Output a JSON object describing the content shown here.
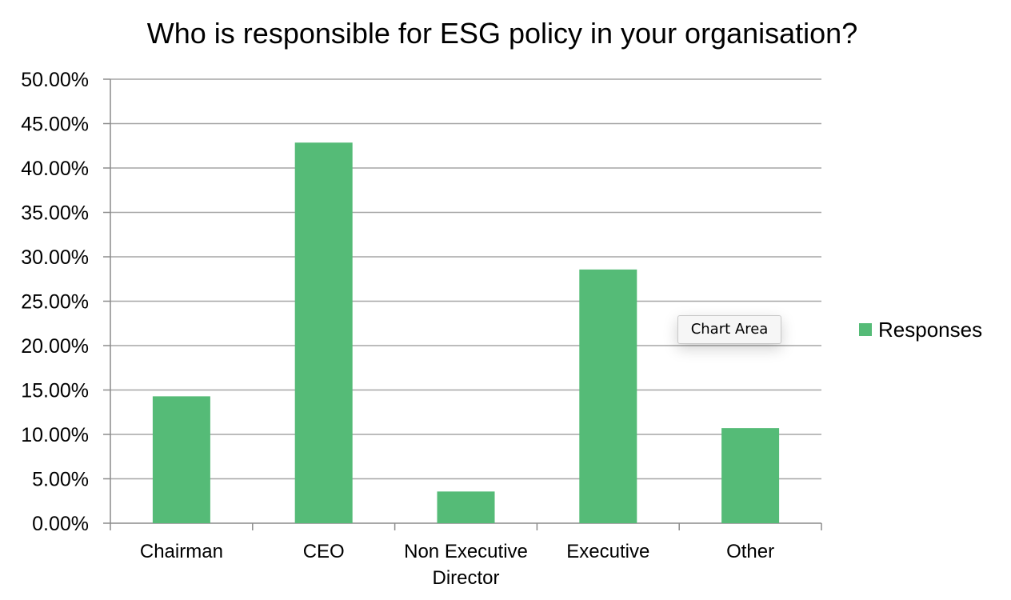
{
  "chart_data": {
    "type": "bar",
    "title": "Who is responsible for ESG policy in your organisation?",
    "xlabel": "",
    "ylabel": "",
    "categories": [
      "Chairman",
      "CEO",
      "Non Executive Director",
      "Executive",
      "Other"
    ],
    "category_lines": [
      [
        "Chairman"
      ],
      [
        "CEO"
      ],
      [
        "Non Executive",
        "Director"
      ],
      [
        "Executive"
      ],
      [
        "Other"
      ]
    ],
    "series": [
      {
        "name": "Responses",
        "values": [
          0.1429,
          0.4286,
          0.0357,
          0.2857,
          0.1071
        ],
        "color": "#55bb77"
      }
    ],
    "ylim": [
      0,
      0.5
    ],
    "yticks": [
      0,
      0.05,
      0.1,
      0.15,
      0.2,
      0.25,
      0.3,
      0.35,
      0.4,
      0.45,
      0.5
    ],
    "ytick_labels": [
      "0.00%",
      "5.00%",
      "10.00%",
      "15.00%",
      "20.00%",
      "25.00%",
      "30.00%",
      "35.00%",
      "40.00%",
      "45.00%",
      "50.00%"
    ],
    "grid": true,
    "grid_color": "#a6a6a6",
    "legend_position": "right"
  },
  "tooltip": {
    "label": "Chart Area"
  }
}
